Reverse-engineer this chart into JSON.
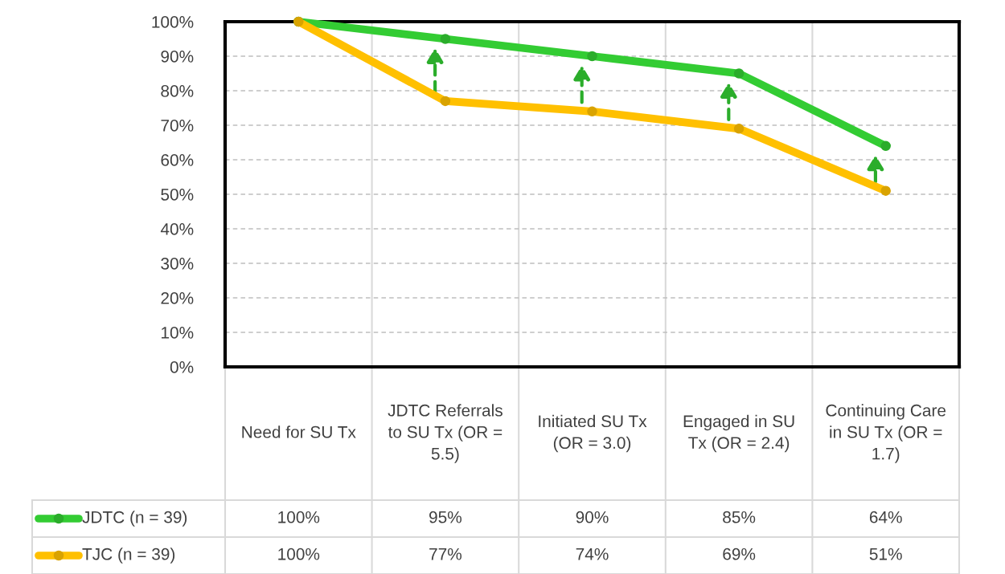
{
  "chart_data": {
    "type": "line",
    "categories": [
      "Need for SU Tx",
      "JDTC Referrals to SU Tx (OR = 5.5)",
      "Initiated SU Tx (OR = 3.0)",
      "Engaged in SU Tx (OR = 2.4)",
      "Continuing Care in SU Tx (OR = 1.7)"
    ],
    "series": [
      {
        "name": "JDTC (n = 39)",
        "color": "#33cc33",
        "values": [
          100,
          95,
          90,
          85,
          64
        ],
        "value_labels": [
          "100%",
          "95%",
          "90%",
          "85%",
          "64%"
        ]
      },
      {
        "name": "TJC (n = 39)",
        "color": "#ffc000",
        "values": [
          100,
          77,
          74,
          69,
          51
        ],
        "value_labels": [
          "100%",
          "77%",
          "74%",
          "69%",
          "51%"
        ]
      }
    ],
    "ylim": [
      0,
      100
    ],
    "yticks": [
      {
        "value": 0,
        "label": "0%"
      },
      {
        "value": 10,
        "label": "10%"
      },
      {
        "value": 20,
        "label": "20%"
      },
      {
        "value": 30,
        "label": "30%"
      },
      {
        "value": 40,
        "label": "40%"
      },
      {
        "value": 50,
        "label": "50%"
      },
      {
        "value": 60,
        "label": "60%"
      },
      {
        "value": 70,
        "label": "70%"
      },
      {
        "value": 80,
        "label": "80%"
      },
      {
        "value": 90,
        "label": "90%"
      },
      {
        "value": 100,
        "label": "100%"
      }
    ],
    "grid": "y",
    "legend": "bottom",
    "marker": "circle",
    "line_style": "solid",
    "data_labels": true
  }
}
